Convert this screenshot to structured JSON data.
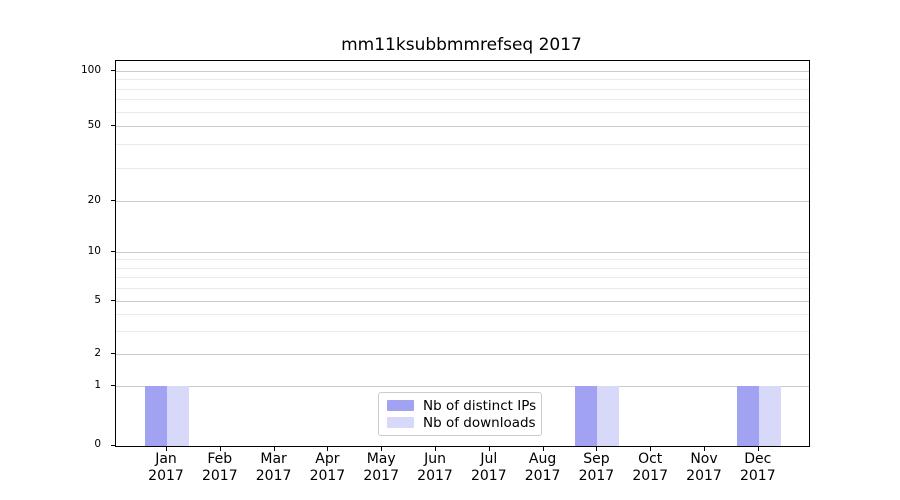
{
  "chart_data": {
    "type": "bar",
    "title": "mm11ksubbmmrefseq 2017",
    "categories": [
      {
        "month": "Jan",
        "year": "2017"
      },
      {
        "month": "Feb",
        "year": "2017"
      },
      {
        "month": "Mar",
        "year": "2017"
      },
      {
        "month": "Apr",
        "year": "2017"
      },
      {
        "month": "May",
        "year": "2017"
      },
      {
        "month": "Jun",
        "year": "2017"
      },
      {
        "month": "Jul",
        "year": "2017"
      },
      {
        "month": "Aug",
        "year": "2017"
      },
      {
        "month": "Sep",
        "year": "2017"
      },
      {
        "month": "Oct",
        "year": "2017"
      },
      {
        "month": "Nov",
        "year": "2017"
      },
      {
        "month": "Dec",
        "year": "2017"
      }
    ],
    "series": [
      {
        "name": "Nb of distinct IPs",
        "color": "#a2a2f2",
        "values": [
          1,
          0,
          0,
          0,
          0,
          0,
          0,
          0,
          1,
          0,
          0,
          1
        ]
      },
      {
        "name": "Nb of downloads",
        "color": "#d8d8f8",
        "values": [
          1,
          0,
          0,
          0,
          0,
          0,
          0,
          0,
          1,
          0,
          0,
          1
        ]
      }
    ],
    "y_axis": {
      "scale": "log-above-1-linear-below",
      "ticks": [
        0,
        1,
        2,
        5,
        10,
        20,
        50,
        100
      ],
      "minor_ticks": [
        3,
        4,
        6,
        7,
        8,
        9,
        30,
        40,
        60,
        70,
        80,
        90
      ],
      "range": [
        0,
        110
      ]
    },
    "x_axis": {
      "label_lines": 2
    },
    "legend": {
      "position": "lower center"
    },
    "grid": true
  }
}
